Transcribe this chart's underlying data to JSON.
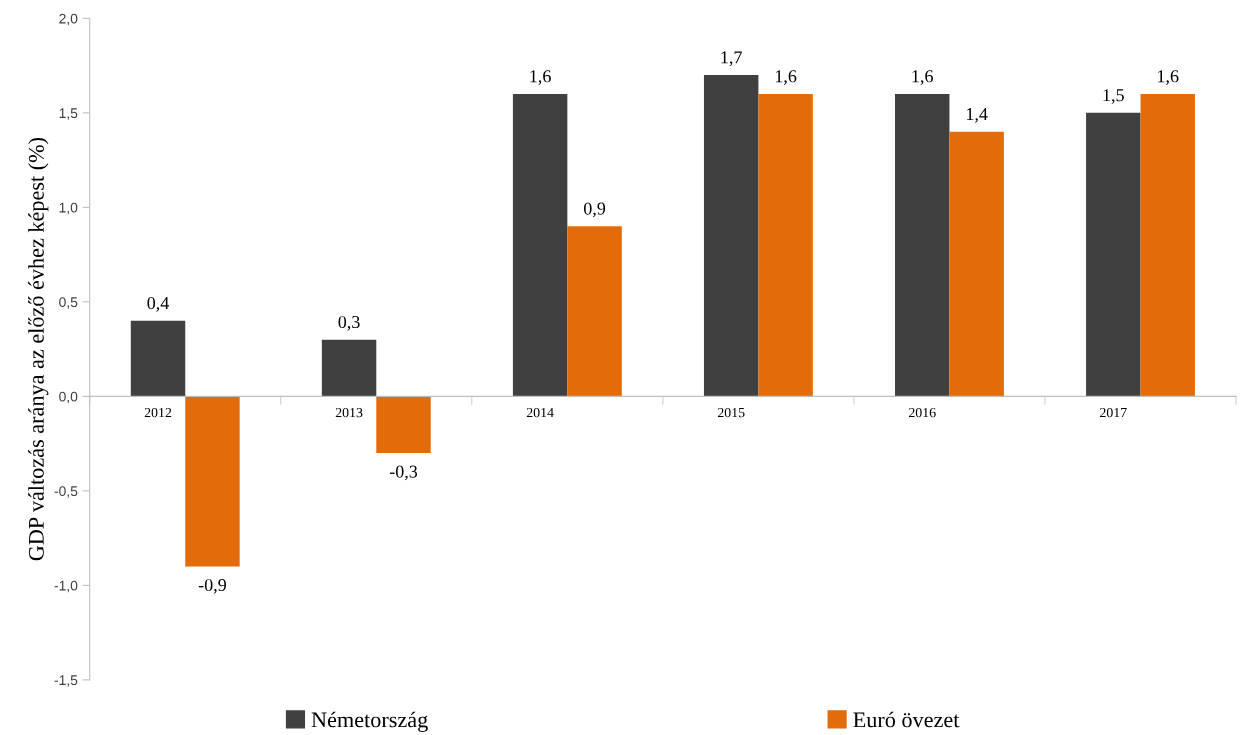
{
  "chart_data": {
    "type": "bar",
    "ylabel": "GDP változás aránya az előző évhez képest (%)",
    "categories": [
      "2012",
      "2013",
      "2014",
      "2015",
      "2016",
      "2017"
    ],
    "series": [
      {
        "name": "Németország",
        "color": "#404040",
        "values": [
          0.4,
          0.3,
          1.6,
          1.7,
          1.6,
          1.5
        ],
        "value_labels": [
          "0,4",
          "0,3",
          "1,6",
          "1,7",
          "1,6",
          "1,5"
        ]
      },
      {
        "name": "Euró övezet",
        "color": "#e36c0a",
        "values": [
          -0.9,
          -0.3,
          0.9,
          1.6,
          1.4,
          1.6
        ],
        "value_labels": [
          "-0,9",
          "-0,3",
          "0,9",
          "1,6",
          "1,4",
          "1,6"
        ]
      }
    ],
    "ylim": [
      -1.5,
      2.0
    ],
    "yticks": [
      {
        "value": -1.5,
        "label": "-1,5"
      },
      {
        "value": -1.0,
        "label": "-1,0"
      },
      {
        "value": -0.5,
        "label": "-0,5"
      },
      {
        "value": 0,
        "label": "0,0"
      },
      {
        "value": 0.5,
        "label": "0,5"
      },
      {
        "value": 1.0,
        "label": "1,0"
      },
      {
        "value": 1.5,
        "label": "1,5"
      },
      {
        "value": 2.0,
        "label": "2,0"
      }
    ],
    "grid": false,
    "legend": "bottom"
  }
}
